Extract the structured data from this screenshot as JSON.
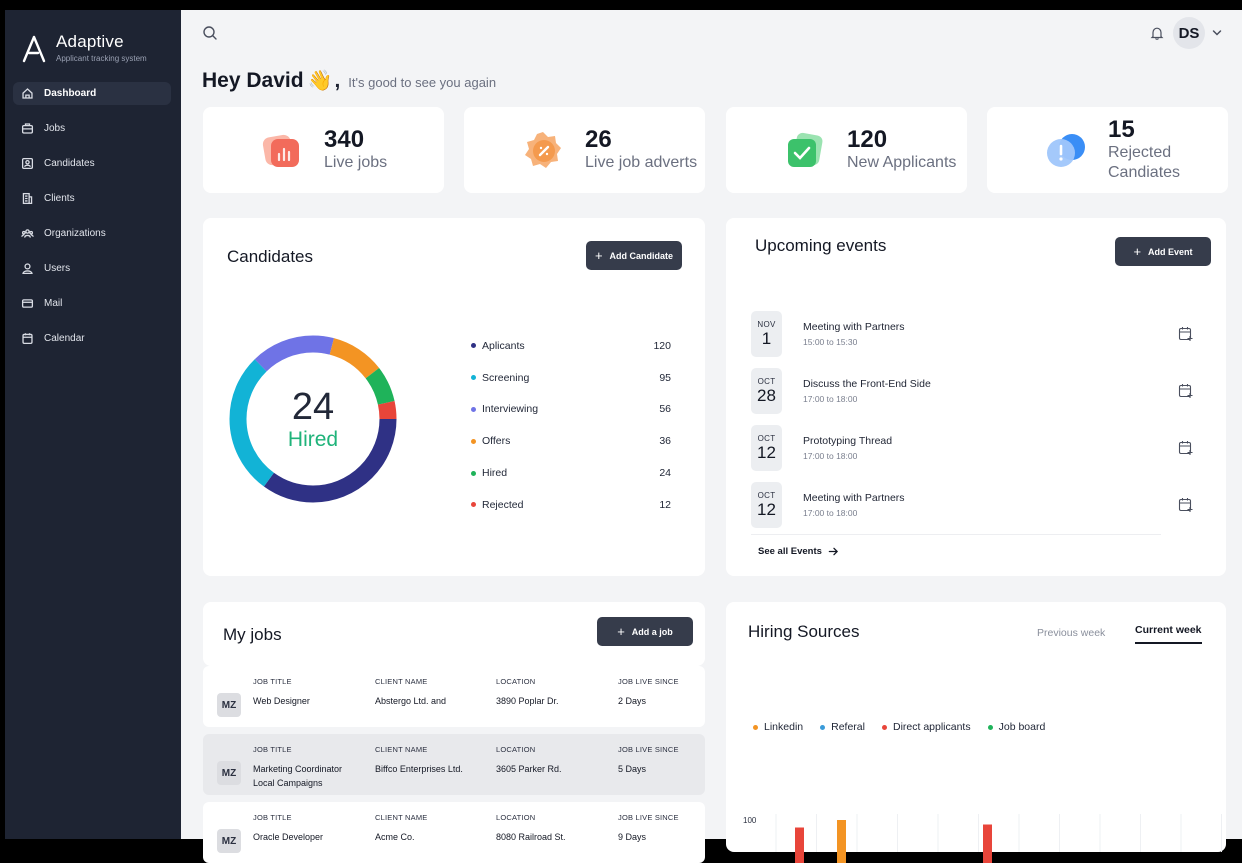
{
  "brand": {
    "name": "Adaptive",
    "tagline": "Applicant tracking system"
  },
  "sidebar": {
    "items": [
      {
        "label": "Dashboard",
        "icon": "home-icon",
        "active": true
      },
      {
        "label": "Jobs",
        "icon": "briefcase-icon"
      },
      {
        "label": "Candidates",
        "icon": "id-card-icon"
      },
      {
        "label": "Clients",
        "icon": "building-icon"
      },
      {
        "label": "Organizations",
        "icon": "group-icon"
      },
      {
        "label": "Users",
        "icon": "user-icon"
      },
      {
        "label": "Mail",
        "icon": "mail-icon"
      },
      {
        "label": "Calendar",
        "icon": "calendar-icon"
      }
    ]
  },
  "topbar": {
    "avatar_initials": "DS"
  },
  "greeting": {
    "title": "Hey David",
    "emoji": "👋",
    "comma": ",",
    "subtitle": "It's good to see you again"
  },
  "stats": [
    {
      "value": "340",
      "label": "Live jobs",
      "color": "#f26b5b"
    },
    {
      "value": "26",
      "label": "Live job adverts",
      "color": "#f49a4e"
    },
    {
      "value": "120",
      "label": "New Applicants",
      "color": "#3cc26b"
    },
    {
      "value": "15",
      "label": "Rejected Candiates",
      "color": "#3a8ef6"
    }
  ],
  "candidates": {
    "title": "Candidates",
    "add_button": "Add Candidate",
    "center_value": "24",
    "center_label": "Hired",
    "chart_data": {
      "type": "pie",
      "categories": [
        "Aplicants",
        "Screening",
        "Interviewing",
        "Offers",
        "Hired",
        "Rejected"
      ],
      "values": [
        120,
        95,
        56,
        36,
        24,
        12
      ],
      "colors": [
        "#2f3185",
        "#12b3d6",
        "#6f73e6",
        "#f39423",
        "#1fb35a",
        "#e8453a"
      ]
    }
  },
  "events": {
    "title": "Upcoming events",
    "add_button": "Add Event",
    "items": [
      {
        "month": "NOV",
        "day": "1",
        "title": "Meeting with Partners",
        "time": "15:00 to 15:30"
      },
      {
        "month": "OCT",
        "day": "28",
        "title": "Discuss the Front-End Side",
        "time": "17:00 to 18:00"
      },
      {
        "month": "OCT",
        "day": "12",
        "title": "Prototyping Thread",
        "time": "17:00 to 18:00"
      },
      {
        "month": "OCT",
        "day": "12",
        "title": "Meeting with Partners",
        "time": "17:00 to 18:00"
      }
    ],
    "see_all": "See all Events"
  },
  "jobs": {
    "title": "My jobs",
    "add_button": "Add a job",
    "headers": {
      "title": "JOB TITLE",
      "client": "CLIENT NAME",
      "location": "LOCATION",
      "since": "JOB LIVE SINCE"
    },
    "rows": [
      {
        "initials": "MZ",
        "title": "Web Designer",
        "client": "Abstergo Ltd. and",
        "location": "3890 Poplar Dr.",
        "since": "2 Days"
      },
      {
        "initials": "MZ",
        "title": "Marketing Coordinator Local Campaigns",
        "client": "Biffco Enterprises Ltd.",
        "location": "3605 Parker Rd.",
        "since": "5 Days"
      },
      {
        "initials": "MZ",
        "title": "Oracle Developer",
        "client": "Acme Co.",
        "location": "8080 Railroad St.",
        "since": "9 Days"
      }
    ]
  },
  "hiring": {
    "title": "Hiring Sources",
    "tab_previous": "Previous week",
    "tab_current": "Current week",
    "chart_data": {
      "type": "bar",
      "series": [
        {
          "name": "Linkedin",
          "color": "#f39423"
        },
        {
          "name": "Referal",
          "color": "#3a9bd9"
        },
        {
          "name": "Direct applicants",
          "color": "#e8453a"
        },
        {
          "name": "Job board",
          "color": "#1fb35a"
        }
      ],
      "ytick_top": "100",
      "ylim": [
        0,
        100
      ],
      "visible_bars": [
        {
          "series": "Direct applicants",
          "value": 95
        },
        {
          "series": "Linkedin",
          "value": 100
        },
        {
          "series": "Direct applicants",
          "value": 97
        }
      ]
    }
  }
}
